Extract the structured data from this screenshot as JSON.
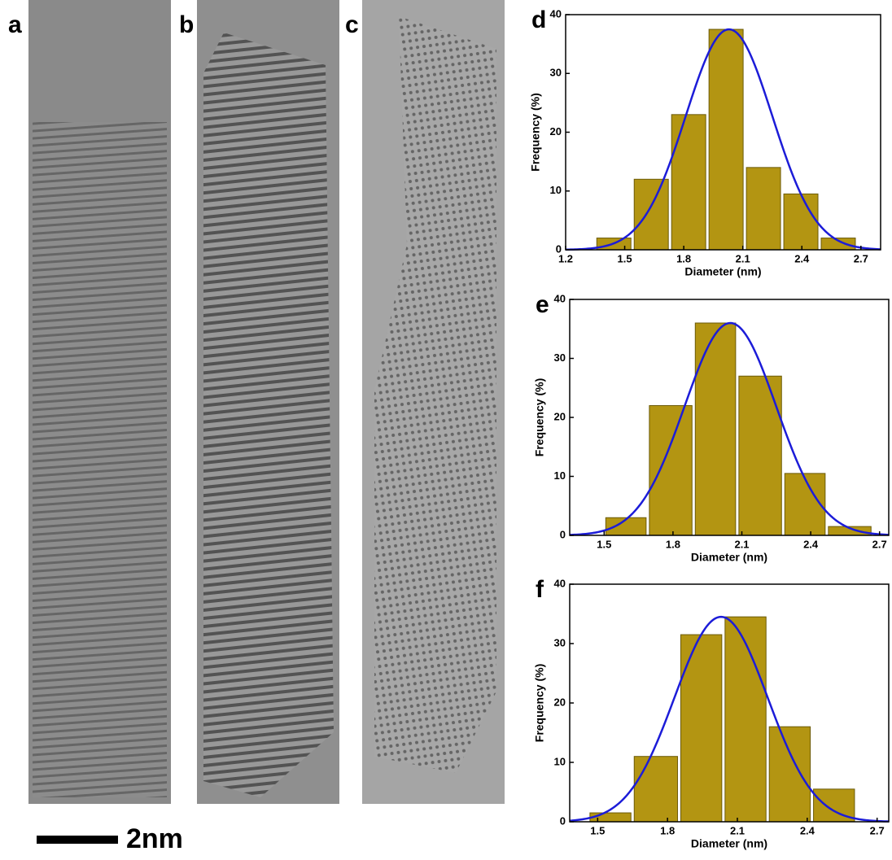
{
  "images": [
    {
      "label": "a"
    },
    {
      "label": "b"
    },
    {
      "label": "c"
    }
  ],
  "scale_bar": "2nm",
  "chart_data": [
    {
      "type": "histogram",
      "label": "d",
      "xlabel": "Diameter (nm)",
      "ylabel": "Frequency (%)",
      "color": "#b39512",
      "fit_color": "#1c1cd8",
      "bins": [
        1.35,
        1.54,
        1.73,
        1.92,
        2.11,
        2.3,
        2.49,
        2.68
      ],
      "values": [
        2,
        12,
        23,
        37.5,
        14,
        9.5,
        2
      ],
      "fit": {
        "mean": 2.03,
        "sigma": 0.22,
        "peak": 37.5
      },
      "xlim": [
        1.2,
        2.8
      ],
      "xticks": [
        1.2,
        1.5,
        1.8,
        2.1,
        2.4,
        2.7
      ],
      "ylim": [
        0,
        40
      ],
      "yticks": [
        0,
        10,
        20,
        30,
        40
      ]
    },
    {
      "type": "histogram",
      "label": "e",
      "xlabel": "Diameter (nm)",
      "ylabel": "Frequency (%)",
      "color": "#b39512",
      "fit_color": "#1c1cd8",
      "bins": [
        1.5,
        1.69,
        1.89,
        2.08,
        2.28,
        2.47,
        2.67
      ],
      "values": [
        3,
        22,
        36,
        27,
        10.5,
        1.5
      ],
      "fit": {
        "mean": 2.05,
        "sigma": 0.2,
        "peak": 36
      },
      "xlim": [
        1.35,
        2.74
      ],
      "xticks": [
        1.5,
        1.8,
        2.1,
        2.4,
        2.7
      ],
      "ylim": [
        0,
        40
      ],
      "yticks": [
        0,
        10,
        20,
        30,
        40
      ]
    },
    {
      "type": "histogram",
      "label": "f",
      "xlabel": "Diameter (nm)",
      "ylabel": "Frequency (%)",
      "color": "#b39512",
      "fit_color": "#1c1cd8",
      "bins": [
        1.46,
        1.65,
        1.85,
        2.04,
        2.23,
        2.42,
        2.61
      ],
      "values": [
        1.5,
        11,
        31.5,
        34.5,
        16,
        5.5
      ],
      "fit": {
        "mean": 2.03,
        "sigma": 0.2,
        "peak": 34.5
      },
      "xlim": [
        1.38,
        2.75
      ],
      "xticks": [
        1.5,
        1.8,
        2.1,
        2.4,
        2.7
      ],
      "ylim": [
        0,
        40
      ],
      "yticks": [
        0,
        10,
        20,
        30,
        40
      ]
    }
  ]
}
